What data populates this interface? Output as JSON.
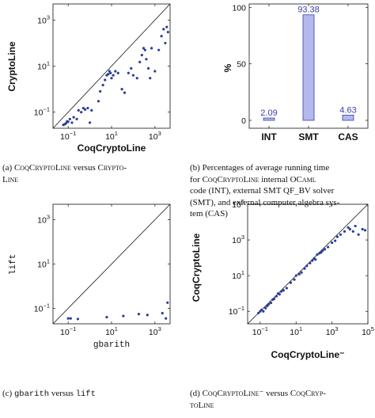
{
  "chart_data": [
    {
      "id": "a",
      "type": "scatter",
      "xlabel": "CoqCryptoLine",
      "ylabel": "CryptoLine",
      "scale": "log",
      "xlim": [
        0.02,
        5000
      ],
      "ylim": [
        0.02,
        5000
      ],
      "ticks": [
        "10^-1",
        "10^1",
        "10^3"
      ],
      "tick_values": [
        0.1,
        10,
        1000
      ],
      "diagonal": true,
      "color": "#2a3d99",
      "points": [
        [
          0.06,
          0.028
        ],
        [
          0.07,
          0.03
        ],
        [
          0.08,
          0.033
        ],
        [
          0.09,
          0.04
        ],
        [
          0.1,
          0.038
        ],
        [
          0.12,
          0.05
        ],
        [
          0.15,
          0.035
        ],
        [
          0.18,
          0.06
        ],
        [
          0.25,
          0.05
        ],
        [
          0.3,
          0.12
        ],
        [
          0.4,
          0.1
        ],
        [
          0.5,
          0.15
        ],
        [
          0.6,
          0.13
        ],
        [
          0.8,
          0.15
        ],
        [
          1.0,
          0.035
        ],
        [
          1.2,
          0.12
        ],
        [
          2.5,
          0.3
        ],
        [
          3,
          0.8
        ],
        [
          4,
          1.5
        ],
        [
          5,
          2.5
        ],
        [
          6,
          4
        ],
        [
          7,
          4.5
        ],
        [
          8,
          6
        ],
        [
          9,
          5
        ],
        [
          10,
          3
        ],
        [
          12,
          4
        ],
        [
          15,
          6
        ],
        [
          20,
          5
        ],
        [
          30,
          1
        ],
        [
          40,
          0.7
        ],
        [
          60,
          5
        ],
        [
          80,
          8
        ],
        [
          100,
          4
        ],
        [
          150,
          3
        ],
        [
          200,
          15
        ],
        [
          250,
          30
        ],
        [
          300,
          60
        ],
        [
          350,
          50
        ],
        [
          400,
          20
        ],
        [
          500,
          8
        ],
        [
          600,
          3
        ],
        [
          700,
          60
        ],
        [
          1000,
          6
        ],
        [
          1500,
          50
        ],
        [
          2000,
          200
        ],
        [
          2500,
          400
        ],
        [
          3000,
          100
        ],
        [
          3500,
          500
        ],
        [
          4000,
          300
        ]
      ]
    },
    {
      "id": "b",
      "type": "bar",
      "ylabel": "%",
      "categories": [
        "INT",
        "SMT",
        "CAS"
      ],
      "values": [
        2.09,
        93.38,
        4.63
      ],
      "value_labels": [
        "2.09",
        "93.38",
        "4.63"
      ],
      "ylim": [
        0,
        100
      ],
      "yticks": [
        0,
        50,
        100
      ],
      "color": "#b3b8ee",
      "edge_color": "#3a42a8",
      "label_color": "#3a42a8"
    },
    {
      "id": "c",
      "type": "scatter",
      "xlabel": "gbarith",
      "ylabel": "lift",
      "scale": "log",
      "xlim": [
        0.02,
        5000
      ],
      "ylim": [
        0.02,
        5000
      ],
      "ticks": [
        "10^-1",
        "10^1",
        "10^3"
      ],
      "tick_values": [
        0.1,
        10,
        1000
      ],
      "diagonal": true,
      "color": "#2a3d99",
      "points": [
        [
          0.1,
          0.035
        ],
        [
          0.13,
          0.035
        ],
        [
          0.28,
          0.033
        ],
        [
          6,
          0.04
        ],
        [
          35,
          0.045
        ],
        [
          180,
          0.055
        ],
        [
          450,
          0.05
        ],
        [
          2200,
          0.06
        ],
        [
          3200,
          0.035
        ],
        [
          3800,
          0.18
        ]
      ]
    },
    {
      "id": "d",
      "type": "scatter",
      "xlabel": "CoqCryptoLine⁻",
      "ylabel": "CoqCryptoLine",
      "scale": "log",
      "xlim": [
        0.02,
        100000
      ],
      "ylim": [
        0.02,
        100000
      ],
      "ticks": [
        "10^-1",
        "10^1",
        "10^3",
        "10^5"
      ],
      "tick_values": [
        0.1,
        10,
        1000,
        100000
      ],
      "diagonal": true,
      "color": "#2a3d99",
      "points": [
        [
          0.08,
          0.08
        ],
        [
          0.1,
          0.1
        ],
        [
          0.12,
          0.12
        ],
        [
          0.15,
          0.1
        ],
        [
          0.2,
          0.15
        ],
        [
          0.25,
          0.2
        ],
        [
          0.3,
          0.25
        ],
        [
          0.4,
          0.3
        ],
        [
          0.5,
          0.45
        ],
        [
          0.6,
          0.5
        ],
        [
          0.8,
          0.7
        ],
        [
          1.0,
          1.0
        ],
        [
          1.2,
          0.9
        ],
        [
          1.5,
          1.3
        ],
        [
          2,
          1.5
        ],
        [
          3,
          2
        ],
        [
          5,
          4
        ],
        [
          8,
          6
        ],
        [
          10,
          10
        ],
        [
          15,
          12
        ],
        [
          20,
          15
        ],
        [
          30,
          25
        ],
        [
          40,
          35
        ],
        [
          60,
          50
        ],
        [
          80,
          70
        ],
        [
          100,
          90
        ],
        [
          120,
          80
        ],
        [
          150,
          150
        ],
        [
          200,
          180
        ],
        [
          250,
          200
        ],
        [
          300,
          250
        ],
        [
          400,
          300
        ],
        [
          600,
          400
        ],
        [
          1000,
          700
        ],
        [
          1500,
          900
        ],
        [
          2000,
          1500
        ],
        [
          3000,
          2000
        ],
        [
          5000,
          3000
        ],
        [
          8000,
          5000
        ],
        [
          10000,
          4000
        ],
        [
          15000,
          3000
        ],
        [
          20000,
          6000
        ],
        [
          30000,
          2000
        ],
        [
          50000,
          4000
        ],
        [
          70000,
          3500
        ]
      ]
    }
  ],
  "captions": {
    "a": {
      "prefix": "(a) ",
      "t1": "CoqCryptoLine",
      "mid": " versus ",
      "t2": "Crypto-",
      "t3": "Line"
    },
    "b": {
      "line1": "(b) Percentages of average running time",
      "line2a": "for ",
      "line2b": "CoqCryptoLine",
      "line2c": " internal ",
      "line2d": "OCaml",
      "line3": "code (INT), external SMT QF_BV solver",
      "line4": "(SMT), and external computer algebra sys-",
      "line5": "tem (CAS)"
    },
    "c": {
      "prefix": "(c) ",
      "t1": "gbarith",
      "mid": " versus ",
      "t2": "lift"
    },
    "d": {
      "prefix": "(d) ",
      "t1": "CoqCryptoLine⁻",
      "mid": " versus ",
      "t2": "CoqCryp-",
      "t3": "toLine"
    }
  }
}
